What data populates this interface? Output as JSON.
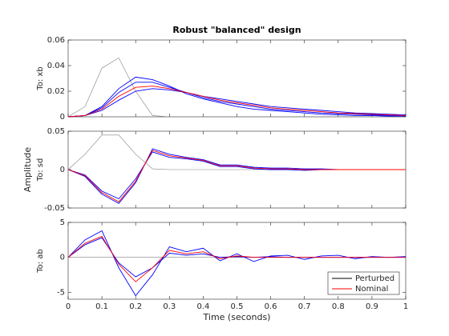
{
  "chart_data": [
    {
      "type": "line",
      "title": "Robust \"balanced\" design",
      "channel_label": "To: xb",
      "x": [
        0,
        0.05,
        0.1,
        0.15,
        0.2,
        0.25,
        0.3,
        0.35,
        0.4,
        0.45,
        0.5,
        0.55,
        0.6,
        0.65,
        0.7,
        0.75,
        0.8,
        0.85,
        0.9,
        0.95,
        1
      ],
      "xlim": [
        0,
        1
      ],
      "ylim": [
        0,
        0.06
      ],
      "yticks": [
        0,
        0.02,
        0.04,
        0.06
      ],
      "series": [
        {
          "color": "#808080",
          "values": [
            0,
            0.008,
            0.038,
            0.046,
            0.02,
            0.001,
            0,
            0,
            0,
            0,
            0,
            0,
            0,
            0,
            0,
            0,
            0,
            0,
            0,
            0,
            0
          ]
        },
        {
          "color": "#0000ff",
          "values": [
            0,
            0.001,
            0.008,
            0.022,
            0.031,
            0.029,
            0.024,
            0.018,
            0.014,
            0.011,
            0.008,
            0.006,
            0.005,
            0.004,
            0.003,
            0.002,
            0.0015,
            0.001,
            0.001,
            0.0005,
            0.0005
          ]
        },
        {
          "color": "#0000ff",
          "values": [
            0,
            0.001,
            0.007,
            0.019,
            0.027,
            0.027,
            0.023,
            0.019,
            0.015,
            0.012,
            0.01,
            0.008,
            0.006,
            0.005,
            0.004,
            0.003,
            0.0025,
            0.002,
            0.0015,
            0.001,
            0.001
          ]
        },
        {
          "color": "#0000ff",
          "values": [
            0,
            0.001,
            0.005,
            0.013,
            0.02,
            0.022,
            0.021,
            0.019,
            0.016,
            0.014,
            0.012,
            0.01,
            0.008,
            0.007,
            0.006,
            0.005,
            0.004,
            0.003,
            0.0025,
            0.002,
            0.0015
          ]
        },
        {
          "color": "#ff0000",
          "values": [
            0,
            0.001,
            0.006,
            0.016,
            0.023,
            0.024,
            0.022,
            0.019,
            0.016,
            0.013,
            0.011,
            0.009,
            0.007,
            0.006,
            0.005,
            0.004,
            0.003,
            0.0025,
            0.002,
            0.0015,
            0.001
          ]
        }
      ]
    },
    {
      "type": "line",
      "ylabel": "Amplitude",
      "channel_label": "To: sd",
      "x": [
        0,
        0.05,
        0.1,
        0.15,
        0.2,
        0.25,
        0.3,
        0.35,
        0.4,
        0.45,
        0.5,
        0.55,
        0.6,
        0.65,
        0.7,
        0.75,
        0.8,
        0.85,
        0.9,
        0.95,
        1
      ],
      "xlim": [
        0,
        1
      ],
      "ylim": [
        -0.05,
        0.05
      ],
      "yticks": [
        -0.05,
        0,
        0.05
      ],
      "series": [
        {
          "color": "#808080",
          "values": [
            0,
            0.02,
            0.045,
            0.045,
            0.02,
            0.001,
            0,
            0,
            0,
            0,
            0,
            0,
            0,
            0,
            0,
            0,
            0,
            0,
            0,
            0,
            0
          ]
        },
        {
          "color": "#0000ff",
          "values": [
            0,
            -0.009,
            -0.032,
            -0.044,
            -0.017,
            0.027,
            0.02,
            0.016,
            0.013,
            0.006,
            0.006,
            0.003,
            0.002,
            0.002,
            0.001,
            0.001,
            0,
            0,
            0,
            0,
            0
          ]
        },
        {
          "color": "#0000ff",
          "values": [
            0,
            -0.007,
            -0.028,
            -0.038,
            -0.012,
            0.023,
            0.016,
            0.014,
            0.011,
            0.004,
            0.004,
            0.001,
            0,
            0,
            -0.001,
            0,
            0,
            0,
            0,
            0,
            0
          ]
        },
        {
          "color": "#ff0000",
          "values": [
            0,
            -0.008,
            -0.03,
            -0.042,
            -0.015,
            0.025,
            0.018,
            0.015,
            0.012,
            0.005,
            0.005,
            0.002,
            0.001,
            0.001,
            0,
            0,
            0,
            0,
            0,
            0,
            0
          ]
        }
      ]
    },
    {
      "type": "line",
      "channel_label": "To: ab",
      "xlabel": "Time (seconds)",
      "x": [
        0,
        0.05,
        0.1,
        0.15,
        0.2,
        0.25,
        0.3,
        0.35,
        0.4,
        0.45,
        0.5,
        0.55,
        0.6,
        0.65,
        0.7,
        0.75,
        0.8,
        0.85,
        0.9,
        0.95,
        1
      ],
      "xlim": [
        0,
        1
      ],
      "ylim": [
        -6,
        5
      ],
      "yticks": [
        -5,
        0,
        5
      ],
      "xticks": [
        0,
        0.1,
        0.2,
        0.3,
        0.4,
        0.5,
        0.6,
        0.7,
        0.8,
        0.9,
        1
      ],
      "legend": "lower right",
      "series": [
        {
          "color": "#808080",
          "values": [
            0,
            0,
            0,
            0,
            0,
            0,
            0,
            0,
            0,
            0,
            0,
            0,
            0,
            0,
            0,
            0,
            0,
            0,
            0,
            0,
            0
          ]
        },
        {
          "name": "Perturbed",
          "color": "#0000ff",
          "legend_color": "#000000",
          "values": [
            0,
            2.5,
            3.8,
            -1.5,
            -5.5,
            -2.5,
            1.5,
            0.8,
            1.3,
            -0.5,
            0.5,
            -0.6,
            0.2,
            0.3,
            -0.3,
            0.2,
            0.3,
            -0.2,
            0.1,
            0,
            0.1
          ]
        },
        {
          "color": "#0000ff",
          "values": [
            0,
            1.8,
            2.8,
            -0.8,
            -2.8,
            -1.5,
            0.6,
            0.3,
            0.5,
            0,
            0.1,
            0,
            0.1,
            0,
            0,
            0,
            0,
            0,
            0,
            0,
            0
          ]
        },
        {
          "name": "Nominal",
          "color": "#ff0000",
          "values": [
            0,
            2,
            3,
            -1,
            -3.5,
            -1.5,
            1,
            0.5,
            0.8,
            -0.2,
            0.2,
            0,
            0,
            0,
            0,
            0,
            0,
            0,
            0,
            0,
            0
          ]
        }
      ]
    }
  ]
}
